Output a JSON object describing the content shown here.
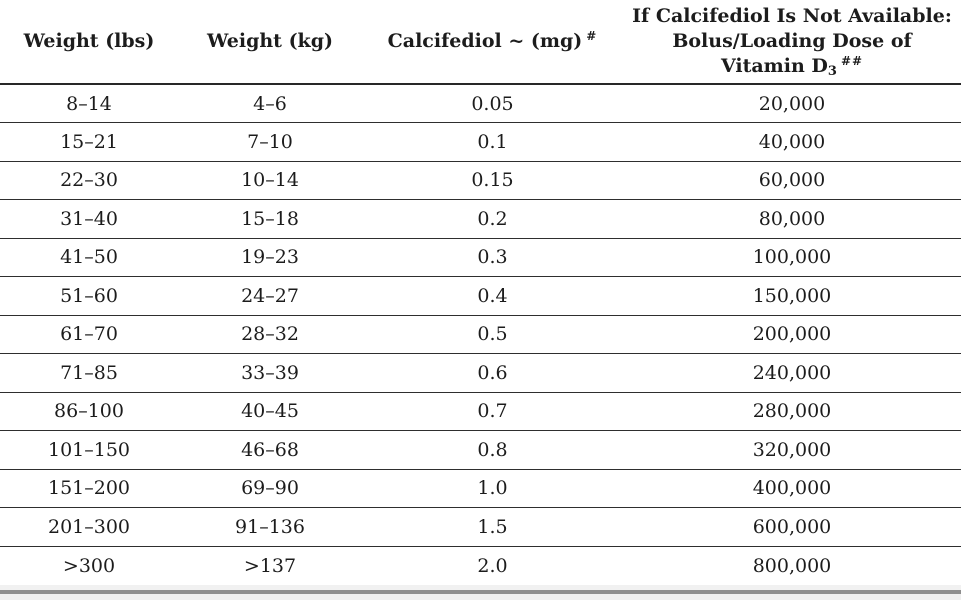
{
  "table": {
    "headers": {
      "col1": "Weight (lbs)",
      "col2": "Weight (kg)",
      "col3": {
        "text": "Calcifediol ~ (mg)",
        "sup": "#"
      },
      "col4": {
        "line1": "If Calcifediol Is Not Available:",
        "line2": "Bolus/Loading Dose of",
        "line3": "Vitamin D",
        "sub": "3",
        "sup": "##"
      }
    },
    "rows": [
      [
        "8–14",
        "4–6",
        "0.05",
        "20,000"
      ],
      [
        "15–21",
        "7–10",
        "0.1",
        "40,000"
      ],
      [
        "22–30",
        "10–14",
        "0.15",
        "60,000"
      ],
      [
        "31–40",
        "15–18",
        "0.2",
        "80,000"
      ],
      [
        "41–50",
        "19–23",
        "0.3",
        "100,000"
      ],
      [
        "51–60",
        "24–27",
        "0.4",
        "150,000"
      ],
      [
        "61–70",
        "28–32",
        "0.5",
        "200,000"
      ],
      [
        "71–85",
        "33–39",
        "0.6",
        "240,000"
      ],
      [
        "86–100",
        "40–45",
        "0.7",
        "280,000"
      ],
      [
        "101–150",
        "46–68",
        "0.8",
        "320,000"
      ],
      [
        "151–200",
        "69–90",
        "1.0",
        "400,000"
      ],
      [
        "201–300",
        "91–136",
        "1.5",
        "600,000"
      ],
      [
        ">300",
        ">137",
        "2.0",
        "800,000"
      ]
    ]
  },
  "colors": {
    "rule_dark": "#282828",
    "bottom_bar_gray": "#8e8e8e",
    "bottom_bar_light": "#f0f0f0"
  }
}
